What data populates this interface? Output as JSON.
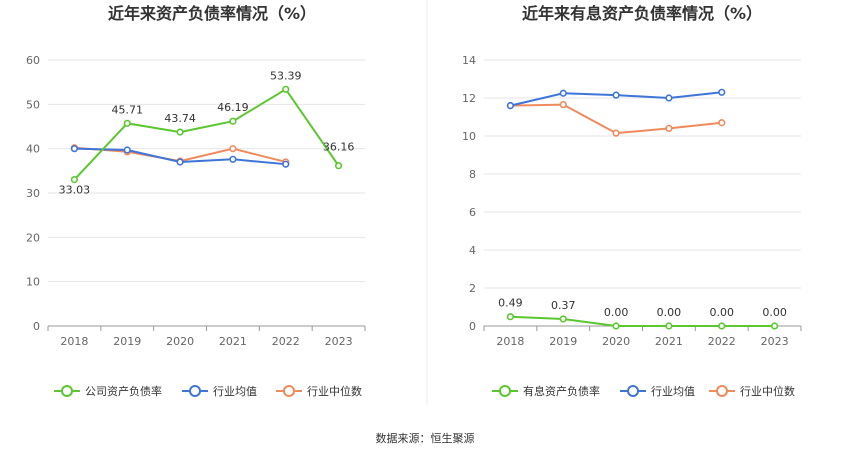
{
  "footer": {
    "source": "数据来源：恒生聚源"
  },
  "colors": {
    "company": "#5ac72f",
    "industry_avg": "#3f74d8",
    "industry_median": "#f08a5d",
    "grid": "#e6e6e6",
    "axis": "#999999"
  },
  "chart_data": [
    {
      "type": "line",
      "title": "近年来资产负债率情况（%）",
      "categories": [
        "2018",
        "2019",
        "2020",
        "2021",
        "2022",
        "2023"
      ],
      "ylim": [
        0,
        60
      ],
      "yticks": [
        "0",
        "10",
        "20",
        "30",
        "40",
        "50",
        "60"
      ],
      "series": [
        {
          "name": "公司资产负债率",
          "values": [
            33.03,
            45.71,
            43.74,
            46.19,
            53.39,
            36.16
          ],
          "labels": [
            "33.03",
            "45.71",
            "43.74",
            "46.19",
            "53.39",
            "36.16"
          ]
        },
        {
          "name": "行业均值",
          "values": [
            40.0,
            39.7,
            37.0,
            37.6,
            36.5,
            null
          ]
        },
        {
          "name": "行业中位数",
          "values": [
            40.2,
            39.3,
            37.2,
            40.0,
            37.0,
            null
          ]
        }
      ]
    },
    {
      "type": "line",
      "title": "近年来有息资产负债率情况（%）",
      "categories": [
        "2018",
        "2019",
        "2020",
        "2021",
        "2022",
        "2023"
      ],
      "ylim": [
        0,
        14
      ],
      "yticks": [
        "0",
        "2",
        "4",
        "6",
        "8",
        "10",
        "12",
        "14"
      ],
      "series": [
        {
          "name": "有息资产负债率",
          "values": [
            0.49,
            0.37,
            0.0,
            0.0,
            0.0,
            0.0
          ],
          "labels": [
            "0.49",
            "0.37",
            "0.00",
            "0.00",
            "0.00",
            "0.00"
          ]
        },
        {
          "name": "行业均值",
          "values": [
            11.6,
            12.25,
            12.15,
            12.0,
            12.3,
            null
          ]
        },
        {
          "name": "行业中位数",
          "values": [
            11.6,
            11.65,
            10.15,
            10.4,
            10.7,
            null
          ]
        }
      ]
    }
  ]
}
